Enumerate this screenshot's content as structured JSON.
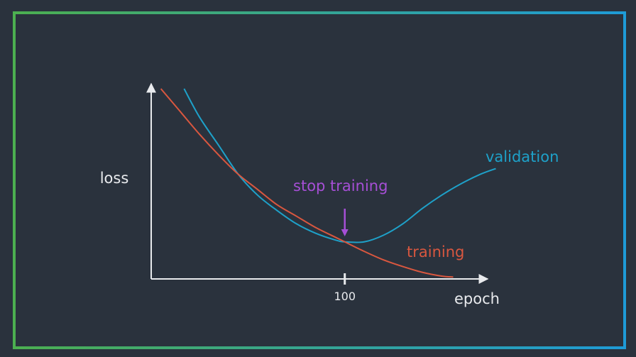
{
  "chart_data": {
    "type": "line",
    "xlabel": "epoch",
    "ylabel": "loss",
    "x_ticks": [
      {
        "value": 100,
        "label": "100"
      }
    ],
    "xlim": [
      0,
      176
    ],
    "ylim": [
      0,
      100
    ],
    "grid": false,
    "series": [
      {
        "name": "training",
        "color": "#d9573f",
        "x": [
          5,
          15,
          25,
          35,
          45,
          55,
          65,
          75,
          85,
          95,
          100,
          110,
          120,
          130,
          140,
          150,
          156
        ],
        "y": [
          100,
          88,
          76,
          65,
          55,
          47,
          39,
          33,
          27,
          22,
          19.5,
          14.5,
          10,
          6.5,
          3.5,
          1.5,
          1.0
        ]
      },
      {
        "name": "validation",
        "color": "#1ea1c9",
        "x": [
          17,
          25,
          35,
          45,
          55,
          65,
          75,
          85,
          95,
          100,
          110,
          120,
          130,
          140,
          150,
          160,
          170,
          178
        ],
        "y": [
          100,
          85,
          70,
          55,
          44,
          36,
          29,
          24,
          20.5,
          19.5,
          19.5,
          23,
          29,
          37,
          44,
          50,
          55,
          58
        ]
      }
    ],
    "annotations": [
      {
        "text": "stop training",
        "x": 100,
        "color": "#a64fd6"
      }
    ]
  },
  "colors": {
    "background": "#2a323d",
    "axis": "#e8eaed",
    "frame_left": "#4caf50",
    "frame_right": "#1e9bd7",
    "text": "#e8eaed"
  }
}
